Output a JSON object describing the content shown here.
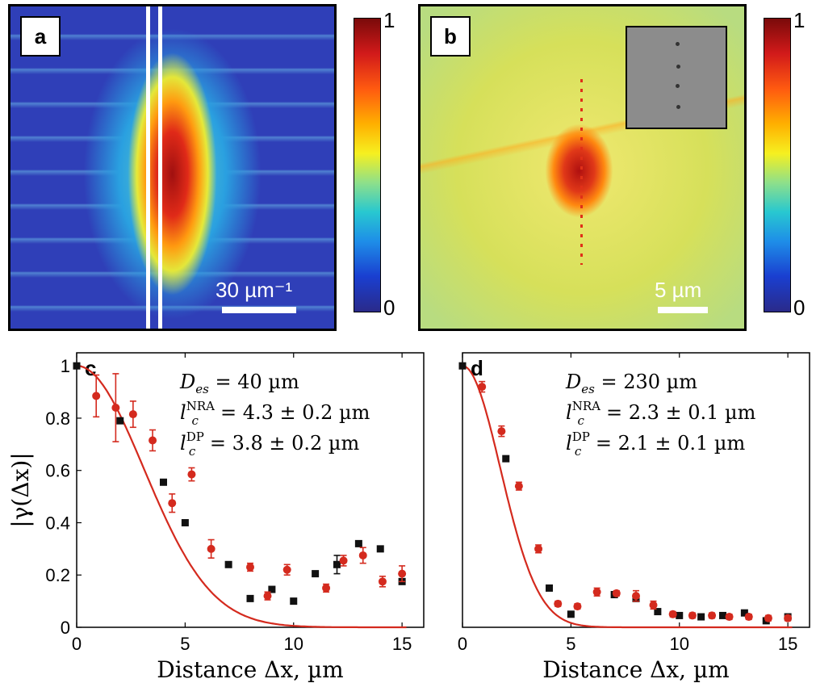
{
  "panels": {
    "a": {
      "label": "a",
      "scalebar": "30 µm⁻¹"
    },
    "b": {
      "label": "b",
      "scalebar": "5 µm"
    },
    "colorbar": {
      "max": "1",
      "min": "0"
    }
  },
  "chart_data": [
    {
      "type": "scatter",
      "panel": "c",
      "xlabel": "Distance Δx, µm",
      "ylabel": "|γ(Δx)|",
      "xlim": [
        0,
        16
      ],
      "ylim": [
        0,
        1.05
      ],
      "xticks": [
        0,
        5,
        10,
        15
      ],
      "yticks": [
        0,
        0.2,
        0.4,
        0.6,
        0.8,
        1
      ],
      "annotations": [
        "D_es = 40 µm",
        "l_c^NRA = 4.3 ± 0.2 µm",
        "l_c^DP = 3.8 ± 0.2 µm"
      ],
      "series": [
        {
          "marker": "square",
          "color": "#111111",
          "x": [
            0,
            2.0,
            4.0,
            5.0,
            7.0,
            8.0,
            9.0,
            10.0,
            11.0,
            12.0,
            13.0,
            14.0,
            15.0
          ],
          "y": [
            1.0,
            0.79,
            0.555,
            0.4,
            0.24,
            0.11,
            0.145,
            0.1,
            0.205,
            0.24,
            0.32,
            0.3,
            0.175
          ],
          "err": [
            0,
            0,
            0,
            0,
            0,
            0,
            0,
            0,
            0,
            0.035,
            0,
            0,
            0
          ]
        },
        {
          "marker": "circle",
          "color": "#d42a1e",
          "x": [
            0.9,
            1.8,
            2.6,
            3.5,
            4.4,
            5.3,
            6.2,
            8.0,
            8.8,
            9.7,
            11.5,
            12.3,
            13.2,
            14.1,
            15.0
          ],
          "y": [
            0.885,
            0.84,
            0.815,
            0.715,
            0.475,
            0.585,
            0.3,
            0.23,
            0.12,
            0.22,
            0.15,
            0.255,
            0.275,
            0.175,
            0.205
          ],
          "err": [
            0.08,
            0.13,
            0.05,
            0.04,
            0.035,
            0.025,
            0.035,
            0.015,
            0.015,
            0.02,
            0.015,
            0.02,
            0.03,
            0.02,
            0.03
          ]
        },
        {
          "type": "line",
          "color": "#d42a1e",
          "function": "gaussian",
          "sigma": 3.1
        }
      ]
    },
    {
      "type": "scatter",
      "panel": "d",
      "xlabel": "Distance Δx, µm",
      "ylabel": "",
      "xlim": [
        0,
        16
      ],
      "ylim": [
        0,
        1.05
      ],
      "xticks": [
        0,
        5,
        10,
        15
      ],
      "yticks": [],
      "annotations": [
        "D_es = 230 µm",
        "l_c^NRA = 2.3 ± 0.1 µm",
        "l_c^DP = 2.1 ± 0.1 µm"
      ],
      "series": [
        {
          "marker": "square",
          "color": "#111111",
          "x": [
            0,
            2.0,
            4.0,
            5.0,
            7.0,
            8.0,
            9.0,
            10.0,
            11.0,
            12.0,
            13.0,
            14.0,
            15.0
          ],
          "y": [
            1.0,
            0.645,
            0.15,
            0.05,
            0.125,
            0.11,
            0.06,
            0.045,
            0.04,
            0.045,
            0.055,
            0.025,
            0.04
          ],
          "err": [
            0,
            0,
            0,
            0,
            0,
            0,
            0,
            0,
            0,
            0,
            0,
            0,
            0
          ]
        },
        {
          "marker": "circle",
          "color": "#d42a1e",
          "x": [
            0.9,
            1.8,
            2.6,
            3.5,
            4.4,
            5.3,
            6.2,
            7.1,
            8.0,
            8.8,
            9.7,
            10.6,
            11.5,
            12.3,
            13.2,
            14.1,
            15.0
          ],
          "y": [
            0.92,
            0.75,
            0.54,
            0.3,
            0.09,
            0.08,
            0.135,
            0.13,
            0.12,
            0.085,
            0.05,
            0.045,
            0.045,
            0.04,
            0.04,
            0.035,
            0.035
          ],
          "err": [
            0.02,
            0.02,
            0.015,
            0.015,
            0.01,
            0.01,
            0.015,
            0.01,
            0.02,
            0.015,
            0.01,
            0.01,
            0.01,
            0.01,
            0.01,
            0.01,
            0.01
          ]
        },
        {
          "type": "line",
          "color": "#d42a1e",
          "function": "gaussian",
          "sigma": 1.75
        }
      ]
    }
  ]
}
